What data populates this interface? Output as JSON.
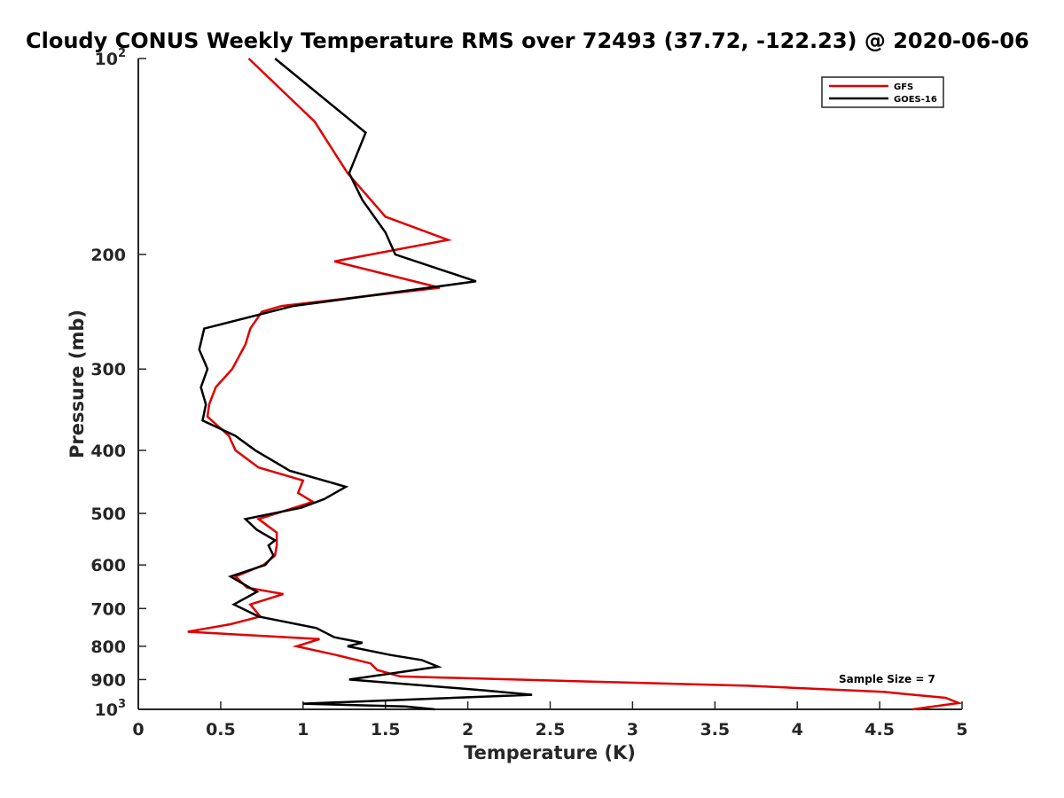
{
  "chart_data": {
    "type": "line",
    "title": "Cloudy CONUS Weekly Temperature RMS over 72493 (37.72, -122.23) @ 2020-06-06",
    "xlabel": "Temperature (K)",
    "ylabel": "Pressure (mb)",
    "xlim": [
      0,
      5
    ],
    "ylim": [
      100,
      1000
    ],
    "yscale": "log",
    "y_reversed": true,
    "x_ticks": [
      "0",
      "0.5",
      "1",
      "1.5",
      "2",
      "2.5",
      "3",
      "3.5",
      "4",
      "4.5",
      "5"
    ],
    "y_ticks": [
      {
        "value": 100,
        "base": "10",
        "exp": "2"
      },
      {
        "value": 200,
        "label": "200"
      },
      {
        "value": 300,
        "label": "300"
      },
      {
        "value": 400,
        "label": "400"
      },
      {
        "value": 500,
        "label": "500"
      },
      {
        "value": 600,
        "label": "600"
      },
      {
        "value": 700,
        "label": "700"
      },
      {
        "value": 800,
        "label": "800"
      },
      {
        "value": 900,
        "label": "900"
      },
      {
        "value": 1000,
        "base": "10",
        "exp": "3"
      }
    ],
    "grid": false,
    "legend_position": "top-right",
    "annotation": "Sample Size = 7",
    "series": [
      {
        "name": "GFS",
        "color": "#e00000",
        "points": [
          [
            0.67,
            100
          ],
          [
            1.07,
            125
          ],
          [
            1.27,
            150
          ],
          [
            1.5,
            175
          ],
          [
            1.88,
            190
          ],
          [
            1.19,
            205
          ],
          [
            1.83,
            225
          ],
          [
            0.87,
            240
          ],
          [
            0.75,
            245
          ],
          [
            0.68,
            260
          ],
          [
            0.65,
            275
          ],
          [
            0.57,
            300
          ],
          [
            0.47,
            320
          ],
          [
            0.43,
            340
          ],
          [
            0.42,
            355
          ],
          [
            0.55,
            380
          ],
          [
            0.59,
            400
          ],
          [
            0.73,
            425
          ],
          [
            1.0,
            445
          ],
          [
            0.97,
            465
          ],
          [
            1.06,
            480
          ],
          [
            0.73,
            510
          ],
          [
            0.84,
            535
          ],
          [
            0.84,
            560
          ],
          [
            0.83,
            580
          ],
          [
            0.76,
            600
          ],
          [
            0.59,
            625
          ],
          [
            0.66,
            650
          ],
          [
            0.88,
            665
          ],
          [
            0.68,
            690
          ],
          [
            0.74,
            720
          ],
          [
            0.56,
            740
          ],
          [
            0.3,
            760
          ],
          [
            1.1,
            780
          ],
          [
            0.96,
            800
          ],
          [
            1.2,
            825
          ],
          [
            1.41,
            850
          ],
          [
            1.45,
            870
          ],
          [
            1.59,
            890
          ],
          [
            3.7,
            920
          ],
          [
            4.52,
            940
          ],
          [
            4.9,
            960
          ],
          [
            4.98,
            978
          ],
          [
            4.7,
            1000
          ]
        ]
      },
      {
        "name": "GOES-16",
        "color": "#000000",
        "points": [
          [
            0.83,
            100
          ],
          [
            1.38,
            130
          ],
          [
            1.28,
            150
          ],
          [
            1.36,
            165
          ],
          [
            1.5,
            185
          ],
          [
            1.56,
            200
          ],
          [
            2.05,
            220
          ],
          [
            0.94,
            240
          ],
          [
            0.4,
            260
          ],
          [
            0.37,
            280
          ],
          [
            0.42,
            300
          ],
          [
            0.38,
            320
          ],
          [
            0.41,
            340
          ],
          [
            0.39,
            360
          ],
          [
            0.59,
            380
          ],
          [
            0.71,
            400
          ],
          [
            0.92,
            430
          ],
          [
            1.26,
            455
          ],
          [
            1.13,
            475
          ],
          [
            0.99,
            490
          ],
          [
            0.65,
            510
          ],
          [
            0.72,
            530
          ],
          [
            0.83,
            550
          ],
          [
            0.79,
            560
          ],
          [
            0.82,
            580
          ],
          [
            0.77,
            600
          ],
          [
            0.56,
            625
          ],
          [
            0.72,
            660
          ],
          [
            0.58,
            690
          ],
          [
            0.73,
            720
          ],
          [
            1.08,
            750
          ],
          [
            1.19,
            775
          ],
          [
            1.36,
            790
          ],
          [
            1.27,
            800
          ],
          [
            1.53,
            825
          ],
          [
            1.72,
            840
          ],
          [
            1.82,
            860
          ],
          [
            1.28,
            900
          ],
          [
            2.1,
            935
          ],
          [
            2.39,
            950
          ],
          [
            1.0,
            980
          ],
          [
            1.62,
            990
          ],
          [
            1.8,
            1000
          ]
        ]
      }
    ]
  }
}
